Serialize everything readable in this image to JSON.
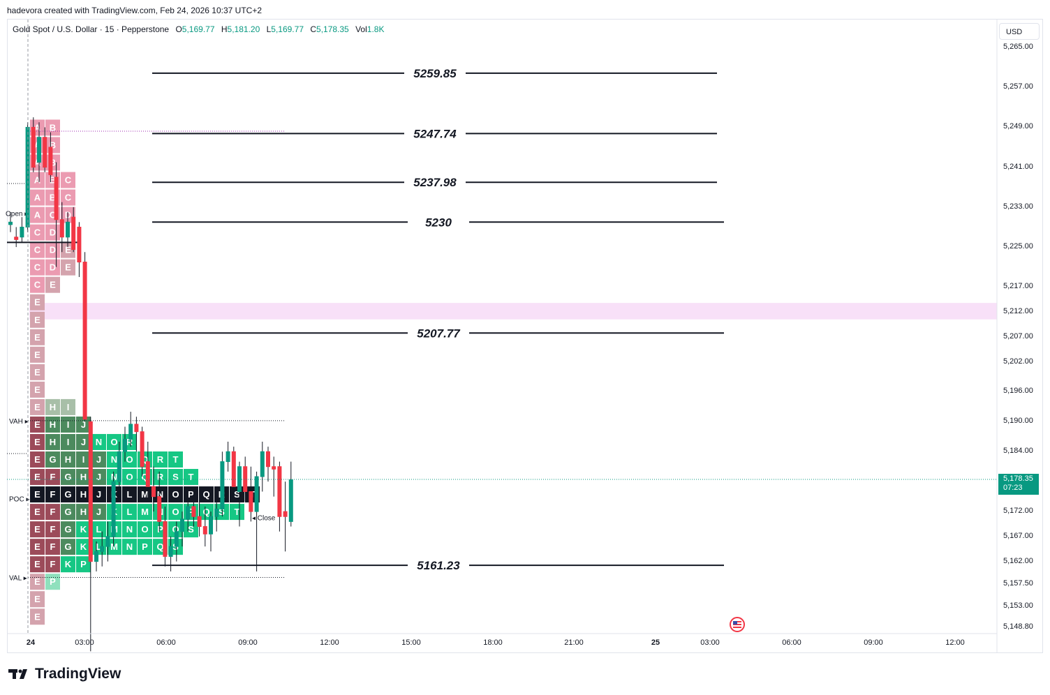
{
  "header": {
    "credit": "hadevora created with TradingView.com, Feb 24, 2026 10:37 UTC+2",
    "symbol": "Gold Spot / U.S. Dollar · 15 · Pepperstone",
    "open_label": "O",
    "open_value": "5,169.77",
    "high_label": "H",
    "high_value": "5,181.20",
    "low_label": "L",
    "low_value": "5,169.77",
    "close_label": "C",
    "close_value": "5,178.35",
    "vol_label": "Vol",
    "vol_value": "1.8K"
  },
  "price_axis": {
    "currency": "USD",
    "labels": [
      "5,265.00",
      "5,257.00",
      "5,249.00",
      "5,241.00",
      "5,233.00",
      "5,225.00",
      "5,217.00",
      "5,212.00",
      "5,207.00",
      "5,202.00",
      "5,196.00",
      "5,190.00",
      "5,184.00",
      "5,178.00",
      "5,172.00",
      "5,167.00",
      "5,162.00",
      "5,157.50",
      "5,153.00",
      "5,148.80"
    ],
    "last_price": "5,178.35",
    "countdown": "07:23"
  },
  "time_axis": {
    "labels": [
      "24",
      "03:00",
      "06:00",
      "09:00",
      "12:00",
      "15:00",
      "18:00",
      "21:00",
      "25",
      "03:00",
      "06:00",
      "09:00",
      "12:00"
    ]
  },
  "colors": {
    "up": "#089981",
    "down": "#f23645",
    "tpo_pink": "#e88aa3",
    "tpo_dark_red": "#9c4b5a",
    "tpo_green": "#16c784",
    "zone": "#f8e0f8"
  },
  "chart_data": {
    "type": "candlestick",
    "title": "Gold Spot / U.S. Dollar · 15 · Pepperstone",
    "ylim": [
      5146,
      5270
    ],
    "horizontal_levels": [
      {
        "label": "5259.85",
        "value": 5259.85
      },
      {
        "label": "5247.74",
        "value": 5247.74
      },
      {
        "label": "5237.98",
        "value": 5237.98
      },
      {
        "label": "5230",
        "value": 5230
      },
      {
        "label": "5207.77",
        "value": 5207.77
      },
      {
        "label": "5161.23",
        "value": 5161.23
      }
    ],
    "zone": {
      "from": 5210.5,
      "to": 5213.8
    },
    "profile_markers": [
      {
        "label": "Open",
        "value": 5231.8
      },
      {
        "label": "VAH",
        "value": 5190.2
      },
      {
        "label": "POC",
        "value": 5174.6
      },
      {
        "label": "VAL",
        "value": 5158.8
      },
      {
        "label": "Close",
        "value": 5170.8
      }
    ],
    "tpo_rows": [
      {
        "price": 5249,
        "letters": [
          "A",
          "B"
        ]
      },
      {
        "price": 5245.5,
        "letters": [
          "A",
          "B"
        ]
      },
      {
        "price": 5242,
        "letters": [
          "A",
          "B"
        ]
      },
      {
        "price": 5238.5,
        "letters": [
          "A",
          "B",
          "C"
        ]
      },
      {
        "price": 5235,
        "letters": [
          "A",
          "B",
          "C"
        ]
      },
      {
        "price": 5231.5,
        "letters": [
          "A",
          "C",
          "D"
        ]
      },
      {
        "price": 5228,
        "letters": [
          "C",
          "D"
        ]
      },
      {
        "price": 5224.5,
        "letters": [
          "C",
          "D",
          "E"
        ]
      },
      {
        "price": 5221,
        "letters": [
          "C",
          "D",
          "E"
        ]
      },
      {
        "price": 5217.5,
        "letters": [
          "C",
          "E"
        ]
      },
      {
        "price": 5214,
        "letters": [
          "E"
        ]
      },
      {
        "price": 5210.5,
        "letters": [
          "E"
        ]
      },
      {
        "price": 5207,
        "letters": [
          "E"
        ]
      },
      {
        "price": 5203.5,
        "letters": [
          "E"
        ]
      },
      {
        "price": 5200,
        "letters": [
          "E"
        ]
      },
      {
        "price": 5196.5,
        "letters": [
          "E"
        ]
      },
      {
        "price": 5193,
        "letters": [
          "E",
          "H",
          "I"
        ]
      },
      {
        "price": 5189.5,
        "letters": [
          "E",
          "H",
          "I",
          "J"
        ]
      },
      {
        "price": 5186,
        "letters": [
          "E",
          "H",
          "I",
          "J",
          "N",
          "O",
          "R"
        ]
      },
      {
        "price": 5182.5,
        "letters": [
          "E",
          "G",
          "H",
          "I",
          "J",
          "N",
          "O",
          "Q",
          "R",
          "T"
        ]
      },
      {
        "price": 5179,
        "letters": [
          "E",
          "F",
          "G",
          "H",
          "J",
          "N",
          "O",
          "Q",
          "R",
          "S",
          "T"
        ]
      },
      {
        "price": 5175.5,
        "letters": [
          "E",
          "F",
          "G",
          "H",
          "J",
          "K",
          "L",
          "M",
          "N",
          "O",
          "P",
          "Q",
          "R",
          "S",
          "T"
        ]
      },
      {
        "price": 5172,
        "letters": [
          "E",
          "F",
          "G",
          "H",
          "J",
          "K",
          "L",
          "M",
          "N",
          "O",
          "P",
          "Q",
          "S",
          "T"
        ]
      },
      {
        "price": 5168.5,
        "letters": [
          "E",
          "F",
          "G",
          "K",
          "L",
          "M",
          "N",
          "O",
          "P",
          "Q",
          "S"
        ]
      },
      {
        "price": 5165,
        "letters": [
          "E",
          "F",
          "G",
          "K",
          "L",
          "M",
          "N",
          "P",
          "Q",
          "S"
        ]
      },
      {
        "price": 5161.5,
        "letters": [
          "E",
          "F",
          "K",
          "P"
        ]
      },
      {
        "price": 5158,
        "letters": [
          "E",
          "P"
        ]
      },
      {
        "price": 5154.5,
        "letters": [
          "E"
        ]
      },
      {
        "price": 5151,
        "letters": [
          "E"
        ]
      }
    ],
    "candles": [
      {
        "o": 5229.5,
        "h": 5232,
        "l": 5228,
        "c": 5230
      },
      {
        "o": 5227,
        "h": 5229,
        "l": 5225,
        "c": 5226.5
      },
      {
        "o": 5227,
        "h": 5231,
        "l": 5226,
        "c": 5229
      },
      {
        "o": 5229,
        "h": 5250,
        "l": 5228,
        "c": 5249
      },
      {
        "o": 5249,
        "h": 5251,
        "l": 5240,
        "c": 5241
      },
      {
        "o": 5242,
        "h": 5250,
        "l": 5238,
        "c": 5247
      },
      {
        "o": 5247,
        "h": 5249,
        "l": 5240,
        "c": 5241
      },
      {
        "o": 5245,
        "h": 5248,
        "l": 5238,
        "c": 5239.5
      },
      {
        "o": 5239,
        "h": 5242,
        "l": 5221,
        "c": 5230.5
      },
      {
        "o": 5230.5,
        "h": 5234,
        "l": 5224,
        "c": 5227
      },
      {
        "o": 5227,
        "h": 5232,
        "l": 5225,
        "c": 5230
      },
      {
        "o": 5231,
        "h": 5233,
        "l": 5224,
        "c": 5224.5
      },
      {
        "o": 5229,
        "h": 5230,
        "l": 5219,
        "c": 5222
      },
      {
        "o": 5222,
        "h": 5224,
        "l": 5190,
        "c": 5190.5
      },
      {
        "o": 5190,
        "h": 5191,
        "l": 5144,
        "c": 5162
      },
      {
        "o": 5162,
        "h": 5166,
        "l": 5160,
        "c": 5164
      },
      {
        "o": 5164,
        "h": 5168,
        "l": 5161,
        "c": 5165
      },
      {
        "o": 5165,
        "h": 5170,
        "l": 5162,
        "c": 5167
      },
      {
        "o": 5167,
        "h": 5180,
        "l": 5165,
        "c": 5178
      },
      {
        "o": 5178,
        "h": 5186,
        "l": 5176,
        "c": 5184
      },
      {
        "o": 5184,
        "h": 5189,
        "l": 5182,
        "c": 5186.5
      },
      {
        "o": 5186.5,
        "h": 5192,
        "l": 5185,
        "c": 5189.5
      },
      {
        "o": 5189.5,
        "h": 5191,
        "l": 5184,
        "c": 5188
      },
      {
        "o": 5188,
        "h": 5189,
        "l": 5179,
        "c": 5181
      },
      {
        "o": 5182,
        "h": 5186,
        "l": 5174,
        "c": 5177
      },
      {
        "o": 5177,
        "h": 5181,
        "l": 5172,
        "c": 5175
      },
      {
        "o": 5175,
        "h": 5180,
        "l": 5168,
        "c": 5170
      },
      {
        "o": 5170,
        "h": 5173,
        "l": 5161,
        "c": 5163
      },
      {
        "o": 5163,
        "h": 5167,
        "l": 5160,
        "c": 5165
      },
      {
        "o": 5165,
        "h": 5170,
        "l": 5162,
        "c": 5168
      },
      {
        "o": 5168,
        "h": 5172,
        "l": 5165,
        "c": 5170.5
      },
      {
        "o": 5170.5,
        "h": 5175,
        "l": 5168,
        "c": 5173
      },
      {
        "o": 5173,
        "h": 5176,
        "l": 5169,
        "c": 5171
      },
      {
        "o": 5171,
        "h": 5175,
        "l": 5167,
        "c": 5169
      },
      {
        "o": 5169,
        "h": 5173,
        "l": 5165,
        "c": 5167.5
      },
      {
        "o": 5167.5,
        "h": 5172,
        "l": 5164,
        "c": 5171
      },
      {
        "o": 5171,
        "h": 5174,
        "l": 5168,
        "c": 5172.5
      },
      {
        "o": 5172.5,
        "h": 5184,
        "l": 5171,
        "c": 5182
      },
      {
        "o": 5182,
        "h": 5186,
        "l": 5180,
        "c": 5184
      },
      {
        "o": 5184,
        "h": 5185,
        "l": 5176,
        "c": 5177
      },
      {
        "o": 5176,
        "h": 5182,
        "l": 5169,
        "c": 5181
      },
      {
        "o": 5181,
        "h": 5183,
        "l": 5174,
        "c": 5176
      },
      {
        "o": 5176,
        "h": 5181,
        "l": 5170,
        "c": 5172
      },
      {
        "o": 5172,
        "h": 5180,
        "l": 5160,
        "c": 5179
      },
      {
        "o": 5179,
        "h": 5186,
        "l": 5176,
        "c": 5184
      },
      {
        "o": 5184,
        "h": 5185,
        "l": 5178,
        "c": 5181
      },
      {
        "o": 5181,
        "h": 5183,
        "l": 5175,
        "c": 5180.5
      },
      {
        "o": 5181,
        "h": 5182,
        "l": 5168,
        "c": 5171
      },
      {
        "o": 5172,
        "h": 5178,
        "l": 5164,
        "c": 5171
      },
      {
        "o": 5170,
        "h": 5182,
        "l": 5169,
        "c": 5178.35
      }
    ]
  }
}
